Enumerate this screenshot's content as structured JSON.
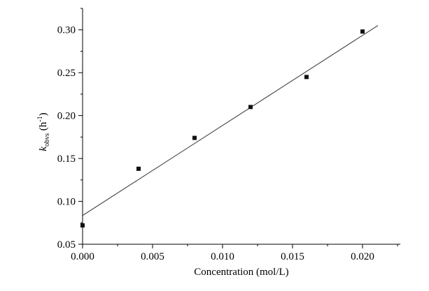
{
  "chart_data": {
    "type": "scatter",
    "title": "",
    "xlabel": "Concentration (mol/L)",
    "ylabel": {
      "symbol": "k",
      "subscript": "obvs",
      "unit_prefix": " (h",
      "unit_sup": "-1",
      "unit_suffix": ")"
    },
    "xlim": [
      0,
      0.0227
    ],
    "ylim": [
      0.05,
      0.325
    ],
    "x_ticks": [
      0.0,
      0.005,
      0.01,
      0.015,
      0.02
    ],
    "x_tick_labels": [
      "0.000",
      "0.005",
      "0.010",
      "0.015",
      "0.020"
    ],
    "y_ticks": [
      0.05,
      0.1,
      0.15,
      0.2,
      0.25,
      0.3
    ],
    "y_tick_labels": [
      "0.05",
      "0.10",
      "0.15",
      "0.20",
      "0.25",
      "0.30"
    ],
    "series": [
      {
        "marker": "square",
        "x": [
          0.0,
          0.004,
          0.008,
          0.012,
          0.016,
          0.02
        ],
        "y": [
          0.072,
          0.138,
          0.174,
          0.21,
          0.245,
          0.298
        ]
      }
    ],
    "fit_line": {
      "type": "linear",
      "intercept": 0.0835,
      "slope": 10.5,
      "x_range": [
        0.0,
        0.0211
      ]
    },
    "grid": false,
    "legend": "none"
  }
}
